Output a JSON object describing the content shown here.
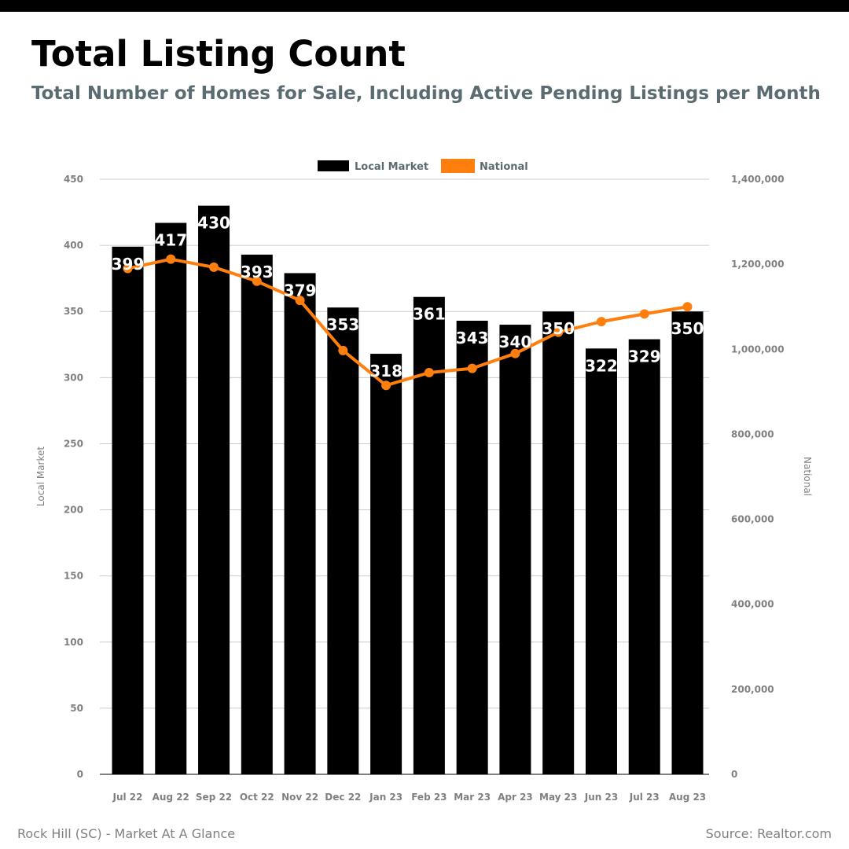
{
  "header": {
    "title": "Total Listing Count",
    "subtitle": "Total Number of Homes for Sale, Including Active Pending Listings per Month"
  },
  "footer": {
    "left": "Rock Hill (SC) - Market At A Glance",
    "right": "Source: Realtor.com"
  },
  "colors": {
    "local": "#000000",
    "national": "#ff7f0e",
    "grid": "#cccccc",
    "tick": "#808080",
    "legend_text": "#5b6b72"
  },
  "chart_data": {
    "type": "bar",
    "categories": [
      "Jul 22",
      "Aug 22",
      "Sep 22",
      "Oct 22",
      "Nov 22",
      "Dec 22",
      "Jan 23",
      "Feb 23",
      "Mar 23",
      "Apr 23",
      "May 23",
      "Jun 23",
      "Jul 23",
      "Aug 23"
    ],
    "series": [
      {
        "name": "Local Market",
        "type": "bar",
        "axis": "left",
        "values": [
          399,
          417,
          430,
          393,
          379,
          353,
          318,
          361,
          343,
          340,
          350,
          322,
          329,
          350
        ]
      },
      {
        "name": "National",
        "type": "line",
        "axis": "right",
        "values": [
          1190000,
          1212000,
          1193000,
          1160000,
          1115000,
          997000,
          915000,
          945000,
          955000,
          990000,
          1040000,
          1065000,
          1083000,
          1100000
        ]
      }
    ],
    "ylabel": "Local Market",
    "y2label": "National",
    "ylim": [
      0,
      450
    ],
    "y2lim": [
      0,
      1400000
    ],
    "yticks": [
      "0",
      "50",
      "100",
      "150",
      "200",
      "250",
      "300",
      "350",
      "400",
      "450"
    ],
    "y2ticks": [
      "0",
      "200,000",
      "400,000",
      "600,000",
      "800,000",
      "1,000,000",
      "1,200,000",
      "1,400,000"
    ],
    "grid": true,
    "legend": "top-center"
  }
}
